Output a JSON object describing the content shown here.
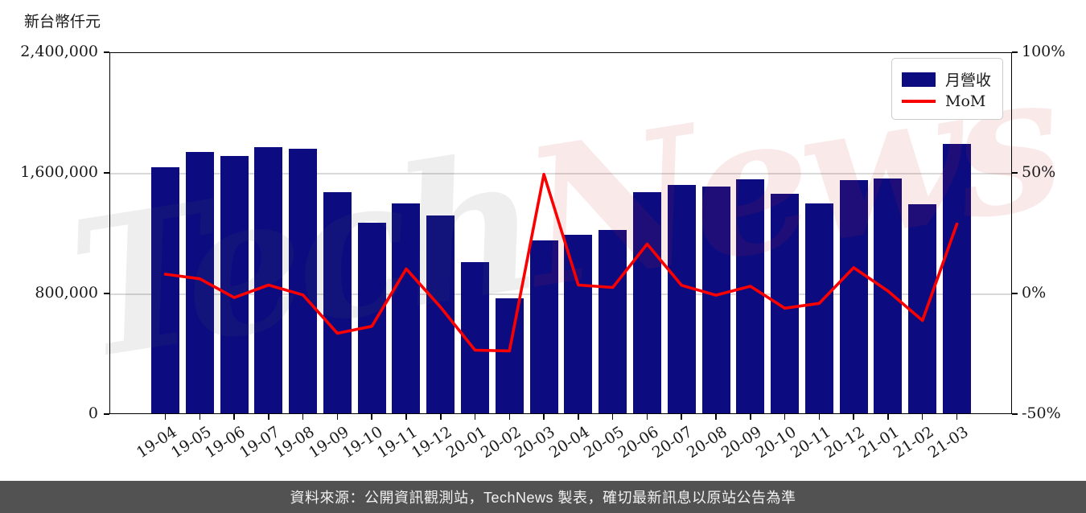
{
  "footer": {
    "text": "資料來源：公開資訊觀測站，TechNews 製表，確切最新訊息以原站公告為準",
    "background_color": "#525252",
    "text_color": "#f2f2f2"
  },
  "watermark": {
    "text": "TechNews",
    "part_gray": "Tech",
    "part_pink": "News",
    "gray_color": "rgba(90,90,90,0.10)",
    "pink_color": "rgba(205,40,40,0.10)"
  },
  "legend": {
    "position": "upper right",
    "items": [
      {
        "label": "月營收",
        "type": "bar",
        "color": "#0c0c80"
      },
      {
        "label": "MoM",
        "type": "line",
        "color": "#fa0000"
      }
    ]
  },
  "chart_data": {
    "type": "bar+line",
    "title": "",
    "categories": [
      "19-04",
      "19-05",
      "19-06",
      "19-07",
      "19-08",
      "19-09",
      "19-10",
      "19-11",
      "19-12",
      "20-01",
      "20-02",
      "20-03",
      "20-04",
      "20-05",
      "20-06",
      "20-07",
      "20-08",
      "20-09",
      "20-10",
      "20-11",
      "20-12",
      "21-01",
      "21-02",
      "21-03"
    ],
    "series": [
      {
        "name": "月營收",
        "type": "bar",
        "axis": "left",
        "unit": "新台幣仟元",
        "color": "#0c0c80",
        "values": [
          1640000,
          1740000,
          1710000,
          1770000,
          1760000,
          1470000,
          1270000,
          1400000,
          1320000,
          1010000,
          770000,
          1150000,
          1190000,
          1220000,
          1470000,
          1520000,
          1510000,
          1555000,
          1460000,
          1400000,
          1550000,
          1565000,
          1390000,
          1790000
        ]
      },
      {
        "name": "MoM",
        "type": "line",
        "axis": "right",
        "unit": "%",
        "color": "#fa0000",
        "values": [
          8.0,
          6.1,
          -1.7,
          3.5,
          -0.6,
          -16.5,
          -13.6,
          10.2,
          -5.7,
          -23.5,
          -23.8,
          49.4,
          3.5,
          2.5,
          20.5,
          3.4,
          -0.7,
          3.0,
          -6.1,
          -4.1,
          10.7,
          1.0,
          -11.2,
          28.8
        ]
      }
    ],
    "left_axis": {
      "unit_label": "新台幣仟元",
      "range": [
        0,
        2400000
      ],
      "ticks": [
        {
          "value": 0,
          "label": "0"
        },
        {
          "value": 800000,
          "label": "800,000"
        },
        {
          "value": 1600000,
          "label": "1,600,000"
        },
        {
          "value": 2400000,
          "label": "2,400,000"
        }
      ],
      "gridline_values": [
        800000,
        1600000
      ]
    },
    "right_axis": {
      "range": [
        -50,
        100
      ],
      "ticks": [
        {
          "value": -50,
          "label": "-50%"
        },
        {
          "value": 0,
          "label": "0%"
        },
        {
          "value": 50,
          "label": "50%"
        },
        {
          "value": 100,
          "label": "100%"
        }
      ]
    },
    "grid": "horizontal light gray at 800,000 / 1,600,000 (0% / 50%)",
    "legend_position": "upper right"
  }
}
